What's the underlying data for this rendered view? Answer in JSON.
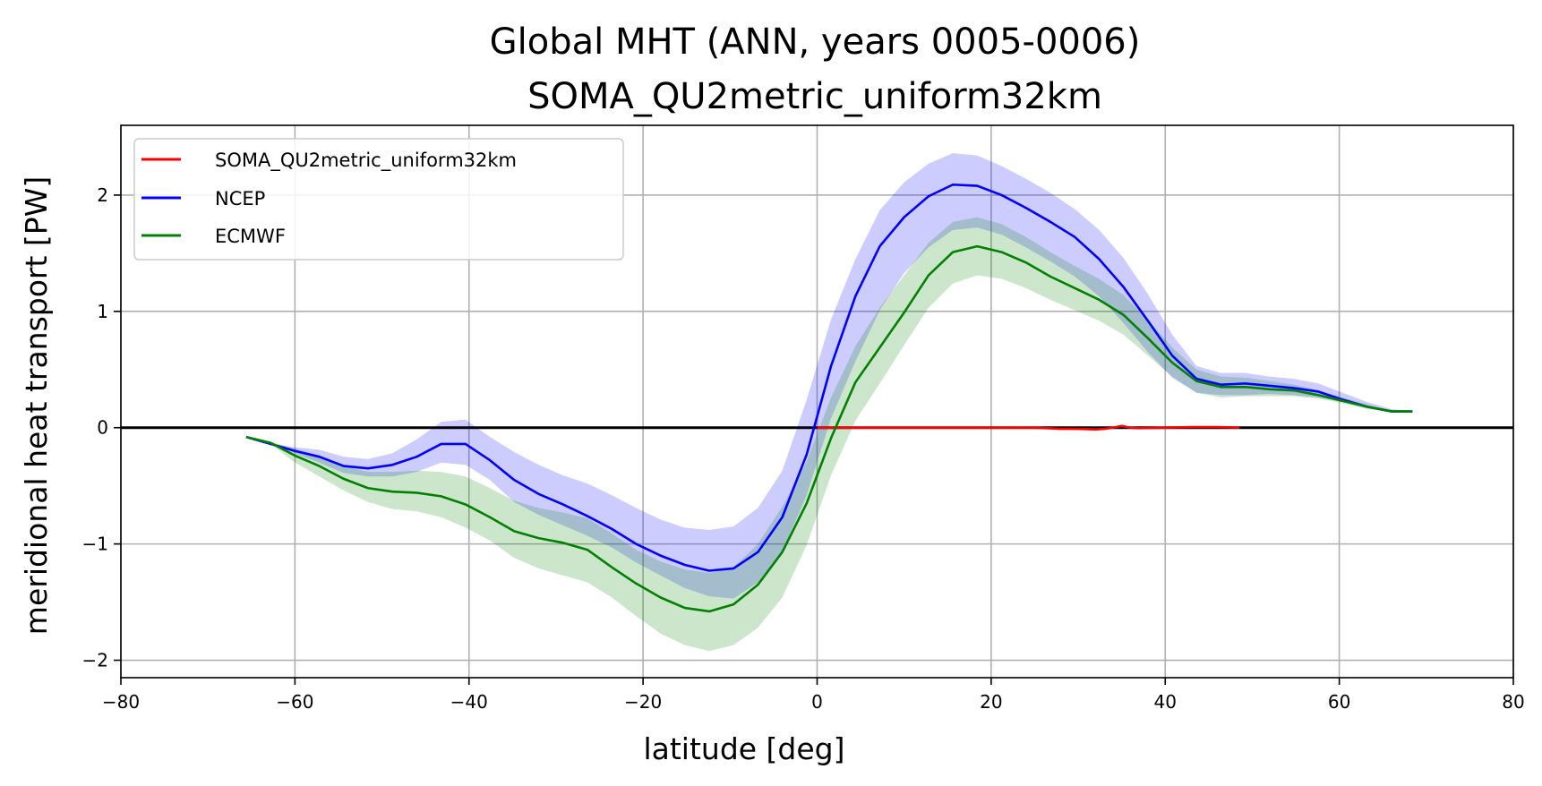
{
  "chart_data": {
    "type": "line",
    "title": "Global MHT (ANN, years 0005-0006)",
    "subtitle": "SOMA_QU2metric_uniform32km",
    "xlabel": "latitude [deg]",
    "ylabel": "meridional heat transport [PW]",
    "xlim": [
      -80,
      80
    ],
    "ylim": [
      -2.15,
      2.6
    ],
    "xticks": [
      -80,
      -60,
      -40,
      -20,
      0,
      20,
      40,
      60,
      80
    ],
    "xtick_labels": [
      "−80",
      "−60",
      "−40",
      "−20",
      "0",
      "20",
      "40",
      "60",
      "80"
    ],
    "yticks": [
      -2,
      -1,
      0,
      1,
      2
    ],
    "ytick_labels": [
      "−2",
      "−1",
      "0",
      "1",
      "2"
    ],
    "grid": true,
    "legend_position": "top-left",
    "zero_line": true,
    "series": [
      {
        "name": "SOMA_QU2metric_uniform32km",
        "color": "#ff0000",
        "x": [
          0,
          5,
          10,
          15,
          20,
          25,
          28,
          30,
          32,
          33,
          34,
          35,
          36,
          37,
          40,
          43,
          46,
          48.5
        ],
        "y": [
          0.0,
          0.0,
          0.0,
          0.0,
          0.0,
          0.0,
          -0.01,
          -0.01,
          -0.015,
          -0.01,
          0.0,
          0.015,
          0.0,
          -0.005,
          0.0,
          0.005,
          0.005,
          0.0
        ]
      },
      {
        "name": "NCEP",
        "color": "#0000ff",
        "band_color": "#0000ff",
        "x": [
          -65.6,
          -62.8,
          -60,
          -57.2,
          -54.4,
          -51.6,
          -48.8,
          -46,
          -43.2,
          -40.4,
          -37.6,
          -34.8,
          -32,
          -29.2,
          -26.4,
          -23.6,
          -20.8,
          -18,
          -15.2,
          -12.4,
          -9.6,
          -6.8,
          -4,
          -1.2,
          1.6,
          4.4,
          7.2,
          10,
          12.8,
          15.6,
          18.4,
          21.2,
          24,
          26.8,
          29.6,
          32.4,
          35.2,
          38,
          40.8,
          43.6,
          46.4,
          49.2,
          52,
          54.8,
          57.6,
          60.4,
          63.2,
          66,
          68.4
        ],
        "y": [
          -0.08,
          -0.14,
          -0.2,
          -0.25,
          -0.33,
          -0.35,
          -0.32,
          -0.25,
          -0.14,
          -0.14,
          -0.28,
          -0.45,
          -0.57,
          -0.66,
          -0.76,
          -0.87,
          -1.0,
          -1.1,
          -1.18,
          -1.23,
          -1.21,
          -1.07,
          -0.77,
          -0.23,
          0.53,
          1.13,
          1.56,
          1.81,
          1.99,
          2.09,
          2.08,
          2.0,
          1.89,
          1.77,
          1.64,
          1.45,
          1.21,
          0.92,
          0.62,
          0.42,
          0.37,
          0.38,
          0.36,
          0.34,
          0.31,
          0.24,
          0.18,
          0.14,
          0.14
        ],
        "band_low": [
          -0.08,
          -0.14,
          -0.22,
          -0.3,
          -0.39,
          -0.42,
          -0.42,
          -0.38,
          -0.3,
          -0.32,
          -0.45,
          -0.64,
          -0.75,
          -0.84,
          -0.93,
          -1.03,
          -1.16,
          -1.27,
          -1.38,
          -1.45,
          -1.47,
          -1.33,
          -1.07,
          -0.58,
          0.08,
          0.57,
          1.01,
          1.33,
          1.55,
          1.7,
          1.72,
          1.66,
          1.55,
          1.43,
          1.3,
          1.13,
          0.9,
          0.65,
          0.43,
          0.3,
          0.28,
          0.28,
          0.29,
          0.28,
          0.26,
          0.22,
          0.17,
          0.14,
          0.14
        ],
        "band_high": [
          -0.08,
          -0.14,
          -0.17,
          -0.19,
          -0.25,
          -0.27,
          -0.22,
          -0.1,
          0.05,
          0.07,
          -0.08,
          -0.21,
          -0.32,
          -0.41,
          -0.48,
          -0.58,
          -0.69,
          -0.79,
          -0.86,
          -0.88,
          -0.85,
          -0.69,
          -0.37,
          0.24,
          0.93,
          1.45,
          1.87,
          2.11,
          2.27,
          2.36,
          2.34,
          2.25,
          2.14,
          2.02,
          1.88,
          1.7,
          1.46,
          1.15,
          0.8,
          0.53,
          0.47,
          0.47,
          0.44,
          0.42,
          0.38,
          0.3,
          0.22,
          0.16,
          0.14
        ]
      },
      {
        "name": "ECMWF",
        "color": "#008000",
        "band_color": "#008000",
        "x": [
          -65.6,
          -62.8,
          -60,
          -57.2,
          -54.4,
          -51.6,
          -48.8,
          -46,
          -43.2,
          -40.4,
          -37.6,
          -34.8,
          -32,
          -29.2,
          -26.4,
          -23.6,
          -20.8,
          -18,
          -15.2,
          -12.4,
          -9.6,
          -6.8,
          -4,
          -1.2,
          1.6,
          4.4,
          7.2,
          10,
          12.8,
          15.6,
          18.4,
          21.2,
          24,
          26.8,
          29.6,
          32.4,
          35.2,
          38,
          40.8,
          43.6,
          46.4,
          49.2,
          52,
          54.8,
          57.6,
          60.4,
          63.2,
          66,
          68.4
        ],
        "y": [
          -0.08,
          -0.13,
          -0.24,
          -0.33,
          -0.44,
          -0.52,
          -0.55,
          -0.56,
          -0.59,
          -0.66,
          -0.77,
          -0.89,
          -0.95,
          -0.99,
          -1.05,
          -1.2,
          -1.34,
          -1.46,
          -1.55,
          -1.58,
          -1.52,
          -1.35,
          -1.07,
          -0.65,
          -0.09,
          0.39,
          0.69,
          0.99,
          1.31,
          1.51,
          1.56,
          1.51,
          1.42,
          1.3,
          1.2,
          1.1,
          0.97,
          0.77,
          0.56,
          0.4,
          0.35,
          0.35,
          0.33,
          0.32,
          0.28,
          0.23,
          0.18,
          0.14,
          0.14
        ],
        "band_low": [
          -0.08,
          -0.14,
          -0.3,
          -0.42,
          -0.54,
          -0.64,
          -0.7,
          -0.72,
          -0.77,
          -0.86,
          -0.97,
          -1.12,
          -1.21,
          -1.27,
          -1.33,
          -1.46,
          -1.62,
          -1.77,
          -1.87,
          -1.92,
          -1.87,
          -1.72,
          -1.46,
          -1.01,
          -0.41,
          0.06,
          0.38,
          0.71,
          1.03,
          1.24,
          1.31,
          1.28,
          1.2,
          1.1,
          1.01,
          0.92,
          0.8,
          0.62,
          0.44,
          0.3,
          0.26,
          0.27,
          0.27,
          0.27,
          0.25,
          0.21,
          0.16,
          0.14,
          0.14
        ],
        "band_high": [
          -0.08,
          -0.12,
          -0.18,
          -0.24,
          -0.33,
          -0.38,
          -0.38,
          -0.37,
          -0.38,
          -0.42,
          -0.52,
          -0.63,
          -0.69,
          -0.73,
          -0.78,
          -0.91,
          -1.05,
          -1.15,
          -1.22,
          -1.25,
          -1.2,
          -1.0,
          -0.68,
          -0.29,
          0.26,
          0.7,
          1.03,
          1.31,
          1.59,
          1.77,
          1.81,
          1.75,
          1.64,
          1.51,
          1.39,
          1.28,
          1.14,
          0.93,
          0.69,
          0.5,
          0.44,
          0.43,
          0.4,
          0.37,
          0.32,
          0.26,
          0.2,
          0.15,
          0.14
        ]
      }
    ]
  }
}
